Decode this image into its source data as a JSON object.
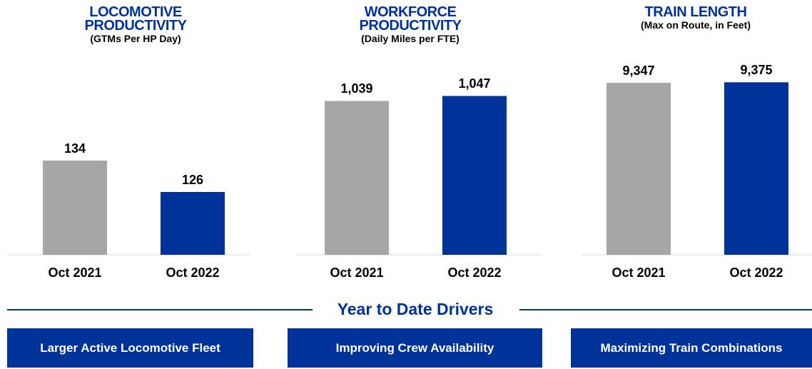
{
  "chart_data": [
    {
      "type": "bar",
      "title": "LOCOMOTIVE PRODUCTIVITY",
      "subtitle": "(GTMs Per HP Day)",
      "categories": [
        "Oct 2021",
        "Oct 2022"
      ],
      "values": [
        134,
        126
      ],
      "colors": [
        "#a6a6a6",
        "#003399"
      ],
      "ylim": [
        110,
        164
      ]
    },
    {
      "type": "bar",
      "title": "WORKFORCE PRODUCTIVITY",
      "subtitle": "(Daily Miles per FTE)",
      "categories": [
        "Oct 2021",
        "Oct 2022"
      ],
      "values": [
        1039,
        1047
      ],
      "value_labels": [
        "1,039",
        "1,047"
      ],
      "colors": [
        "#a6a6a6",
        "#003399"
      ],
      "ylim": [
        793,
        1132
      ]
    },
    {
      "type": "bar",
      "title": "TRAIN LENGTH",
      "subtitle": "(Max on Route, in Feet)",
      "categories": [
        "Oct 2021",
        "Oct 2022"
      ],
      "values": [
        9347,
        9375
      ],
      "value_labels": [
        "9,347",
        "9,375"
      ],
      "colors": [
        "#a6a6a6",
        "#003399"
      ],
      "ylim": [
        0,
        11520
      ]
    }
  ],
  "drivers": {
    "title": "Year to Date Drivers",
    "items": [
      "Larger Active Locomotive Fleet",
      "Improving Crew Availability",
      "Maximizing Train Combinations"
    ]
  }
}
